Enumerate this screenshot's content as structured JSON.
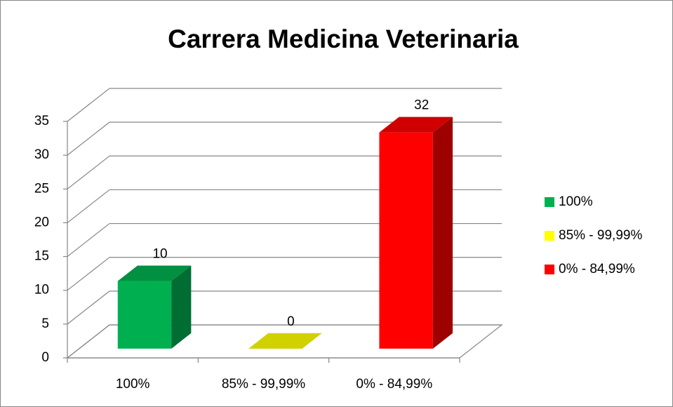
{
  "chart_data": {
    "type": "bar3d",
    "title": "Carrera Medicina Veterinaria",
    "categories": [
      "100%",
      "85% - 99,99%",
      "0% - 84,99%"
    ],
    "values": [
      10,
      0,
      32
    ],
    "colors": [
      "#00b050",
      "#ffff00",
      "#ff0000"
    ],
    "ylim": [
      0,
      35
    ],
    "yticks": [
      0,
      5,
      10,
      15,
      20,
      25,
      30,
      35
    ],
    "grid": true,
    "legend": "right",
    "data_labels": true
  }
}
